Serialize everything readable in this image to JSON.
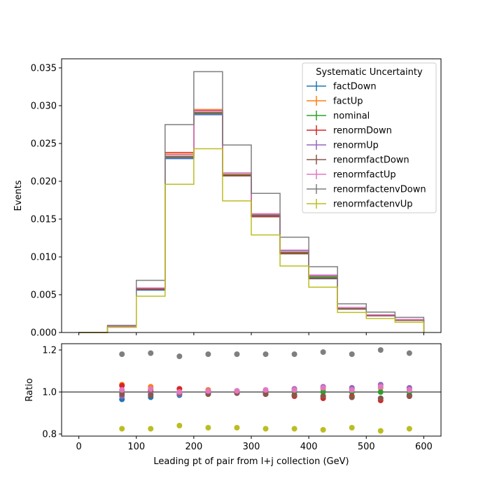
{
  "chart_data": {
    "type": "line",
    "x_edges": [
      0,
      50,
      100,
      150,
      200,
      250,
      300,
      350,
      400,
      450,
      500,
      550,
      600
    ],
    "xlabel": "Leading pt of pair from l+j collection (GeV)",
    "ylabel_top": "Events",
    "ylabel_bottom": "Ratio",
    "xlim": [
      -30,
      630
    ],
    "ylim_top": [
      0,
      0.0362
    ],
    "ylim_bottom": [
      0.79,
      1.23
    ],
    "x_ticks": [
      0,
      100,
      200,
      300,
      400,
      500,
      600
    ],
    "y_ticks_top": [
      0.0,
      0.005,
      0.01,
      0.015,
      0.02,
      0.025,
      0.03,
      0.035
    ],
    "y_tick_labels_top": [
      "0.000",
      "0.005",
      "0.010",
      "0.015",
      "0.020",
      "0.025",
      "0.030",
      "0.035"
    ],
    "y_ticks_bottom": [
      0.8,
      1.0,
      1.2
    ],
    "y_tick_labels_bottom": [
      "0.8",
      "1.0",
      "1.2"
    ],
    "ratio_reference": 1.0,
    "ratio_x": [
      75,
      125,
      175,
      225,
      275,
      325,
      375,
      425,
      475,
      525,
      575
    ],
    "legend": {
      "title": "Systematic Uncertainty",
      "placement": "top-right"
    },
    "series": [
      {
        "name": "factDown",
        "color": "#1f77b4",
        "values": [
          0,
          0.0008,
          0.0056,
          0.023,
          0.0288,
          0.0208,
          0.0154,
          0.0105,
          0.0072,
          0.0031,
          0.0022,
          0.0016
        ],
        "ratio": [
          0.965,
          0.975,
          0.985,
          0.99,
          0.995,
          0.99,
          0.985,
          0.98,
          0.975,
          0.97,
          0.985
        ]
      },
      {
        "name": "factUp",
        "color": "#ff7f0e",
        "values": [
          0,
          0.00085,
          0.0059,
          0.0236,
          0.0295,
          0.0211,
          0.0157,
          0.0108,
          0.0074,
          0.0033,
          0.0023,
          0.0017
        ],
        "ratio": [
          1.035,
          1.025,
          1.015,
          1.01,
          1.005,
          1.005,
          1.01,
          1.015,
          1.015,
          1.02,
          1.015
        ]
      },
      {
        "name": "nominal",
        "color": "#2ca02c",
        "values": [
          0,
          0.00082,
          0.00575,
          0.0233,
          0.0291,
          0.0209,
          0.0155,
          0.0106,
          0.0073,
          0.0032,
          0.00225,
          0.00165
        ],
        "ratio": [
          1.0,
          1.0,
          1.0,
          1.0,
          1.0,
          1.0,
          1.0,
          1.0,
          1.0,
          1.0,
          1.0
        ]
      },
      {
        "name": "renormDown",
        "color": "#d62728",
        "values": [
          0,
          0.00083,
          0.0058,
          0.0238,
          0.0293,
          0.0208,
          0.0154,
          0.0105,
          0.0071,
          0.0031,
          0.0022,
          0.0016
        ],
        "ratio": [
          1.03,
          1.01,
          1.015,
          1.005,
          0.995,
          0.99,
          0.98,
          0.97,
          0.98,
          0.96,
          0.98
        ]
      },
      {
        "name": "renormUp",
        "color": "#9467bd",
        "values": [
          0,
          0.00081,
          0.0057,
          0.0231,
          0.0289,
          0.0211,
          0.0156,
          0.0108,
          0.0075,
          0.0033,
          0.0023,
          0.0017
        ],
        "ratio": [
          0.98,
          0.99,
          0.99,
          0.995,
          1.005,
          1.005,
          1.015,
          1.025,
          1.02,
          1.035,
          1.02
        ]
      },
      {
        "name": "renormfactDown",
        "color": "#8c564b",
        "values": [
          0,
          0.00082,
          0.0057,
          0.0232,
          0.029,
          0.0207,
          0.0153,
          0.0104,
          0.0071,
          0.0031,
          0.0022,
          0.0016
        ],
        "ratio": [
          0.99,
          0.985,
          0.995,
          0.99,
          0.995,
          0.99,
          0.985,
          0.98,
          0.975,
          0.97,
          0.98
        ]
      },
      {
        "name": "renormfactUp",
        "color": "#e377c2",
        "values": [
          0,
          0.00084,
          0.0059,
          0.0235,
          0.0294,
          0.0211,
          0.0157,
          0.0109,
          0.0076,
          0.0033,
          0.00235,
          0.00172
        ],
        "ratio": [
          1.01,
          1.015,
          1.0,
          1.005,
          1.005,
          1.01,
          1.01,
          1.02,
          1.01,
          1.025,
          1.01
        ]
      },
      {
        "name": "renormfactenvDown",
        "color": "#7f7f7f",
        "values": [
          0,
          0.00095,
          0.0069,
          0.0275,
          0.0345,
          0.0248,
          0.0184,
          0.0126,
          0.0087,
          0.0038,
          0.0027,
          0.002
        ],
        "ratio": [
          1.18,
          1.185,
          1.17,
          1.18,
          1.18,
          1.18,
          1.18,
          1.19,
          1.18,
          1.2,
          1.185
        ]
      },
      {
        "name": "renormfactenvUp",
        "color": "#bcbd22",
        "values": [
          0,
          0.00068,
          0.0048,
          0.0196,
          0.0243,
          0.0174,
          0.0129,
          0.0088,
          0.006,
          0.00265,
          0.00185,
          0.00135
        ],
        "ratio": [
          0.825,
          0.825,
          0.84,
          0.83,
          0.83,
          0.825,
          0.825,
          0.82,
          0.83,
          0.815,
          0.825
        ]
      }
    ]
  }
}
